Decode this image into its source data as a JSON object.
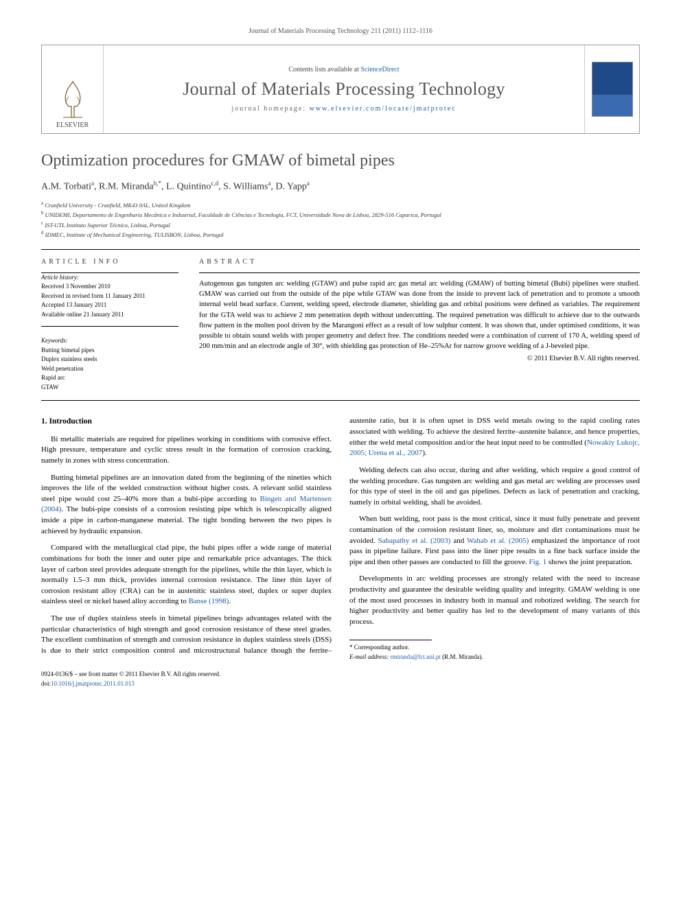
{
  "running_header": "Journal of Materials Processing Technology 211 (2011) 1112–1116",
  "banner": {
    "publisher_name": "ELSEVIER",
    "contents_prefix": "Contents lists available at ",
    "contents_link": "ScienceDirect",
    "journal_name": "Journal of Materials Processing Technology",
    "homepage_prefix": "journal homepage: ",
    "homepage_url": "www.elsevier.com/locate/jmatprotec"
  },
  "title": "Optimization procedures for GMAW of bimetal pipes",
  "authors_html": "A.M. Torbati<sup>a</sup>, R.M. Miranda<sup>b,*</sup>, L. Quintino<sup>c,d</sup>, S. Williams<sup>a</sup>, D. Yapp<sup>a</sup>",
  "affiliations": [
    "a Cranfield University - Cranfield, MK43 0AL, United Kingdom",
    "b UNIDEMI, Departamento de Engenharia Mecânica e Industrial, Faculdade de Ciências e Tecnologia, FCT, Universidade Nova de Lisboa, 2829-516 Caparica, Portugal",
    "c IST-UTL Instituto Superior Técnico, Lisboa, Portugal",
    "d IDMEC, Institute of Mechanical Engineering, TULISBON, Lisboa, Portugal"
  ],
  "article_info_heading": "ARTICLE INFO",
  "abstract_heading": "ABSTRACT",
  "history": {
    "head": "Article history:",
    "lines": [
      "Received 3 November 2010",
      "Received in revised form 11 January 2011",
      "Accepted 13 January 2011",
      "Available online 21 January 2011"
    ]
  },
  "keywords": {
    "head": "Keywords:",
    "items": [
      "Butting bimetal pipes",
      "Duplex stainless steels",
      "Weld penetration",
      "Rapid arc",
      "GTAW"
    ]
  },
  "abstract": "Autogenous gas tungsten arc welding (GTAW) and pulse rapid arc gas metal arc welding (GMAW) of butting bimetal (Bubi) pipelines were studied. GMAW was carried out from the outside of the pipe while GTAW was done from the inside to prevent lack of penetration and to promote a smooth internal weld bead surface. Current, welding speed, electrode diameter, shielding gas and orbital positions were defined as variables. The requirement for the GTA weld was to achieve 2 mm penetration depth without undercutting. The required penetration was difficult to achieve due to the outwards flow pattern in the molten pool driven by the Marangoni effect as a result of low sulphur content. It was shown that, under optimised conditions, it was possible to obtain sound welds with proper geometry and defect free. The conditions needed were a combination of current of 170 A, welding speed of 200 mm/min and an electrode angle of 30°, with shielding gas protection of He–25%Ar for narrow groove welding of a J-beveled pipe.",
  "copyright": "© 2011 Elsevier B.V. All rights reserved.",
  "intro_heading": "1. Introduction",
  "paragraphs": [
    "Bi metallic materials are required for pipelines working in conditions with corrosive effect. High pressure, temperature and cyclic stress result in the formation of corrosion cracking, namely in zones with stress concentration.",
    "Butting bimetal pipelines are an innovation dated from the beginning of the nineties which improves the life of the welded construction without higher costs. A relevant solid stainless steel pipe would cost 25–40% more than a bubi-pipe according to <a class=\"ref\" data-name=\"ref-link\" data-interactable=\"true\">Bingen and Martensen (2004)</a>. The bubi-pipe consists of a corrosion resisting pipe which is telescopically aligned inside a pipe in carbon-manganese material. The tight bonding between the two pipes is achieved by hydraulic expansion.",
    "Compared with the metallurgical clad pipe, the bubi pipes offer a wide range of material combinations for both the inner and outer pipe and remarkable price advantages. The thick layer of carbon steel provides adequate strength for the pipelines, while the thin layer, which is normally 1.5–3 mm thick, provides internal corrosion resistance. The liner thin layer of corrosion resistant alloy (CRA) can be in austenitic stainless steel, duplex or super duplex stainless steel or nickel based alloy according to <a class=\"ref\" data-name=\"ref-link\" data-interactable=\"true\">Banse (1998)</a>.",
    "The use of duplex stainless steels in bimetal pipelines brings advantages related with the particular characteristics of high strength and good corrosion resistance of these steel grades. The excellent combination of strength and corrosion resistance in duplex stainless steels (DSS) is due to their strict composition control and microstructural balance though the ferrite–austenite ratio, but it is often upset in DSS weld metals owing to the rapid cooling rates associated with welding. To achieve the desired ferrite–austenite balance, and hence properties, either the weld metal composition and/or the heat input need to be controlled (<a class=\"ref\" data-name=\"ref-link\" data-interactable=\"true\">Nowakiy Lukojc, 2005; Urena et al., 2007</a>).",
    "Welding defects can also occur, during and after welding, which require a good control of the welding procedure. Gas tungsten arc welding and gas metal arc welding are processes used for this type of steel in the oil and gas pipelines. Defects as lack of penetration and cracking, namely in orbital welding, shall be avoided.",
    "When butt welding, root pass is the most critical, since it must fully penetrate and prevent contamination of the corrosion resistant liner, so, moisture and dirt contaminations must be avoided. <a class=\"ref\" data-name=\"ref-link\" data-interactable=\"true\">Sabapathy et al. (2003)</a> and <a class=\"ref\" data-name=\"ref-link\" data-interactable=\"true\">Wahab et al. (2005)</a> emphasized the importance of root pass in pipeline failure. First pass into the liner pipe results in a fine back surface inside the pipe and then other passes are conducted to fill the groove. <a class=\"ref\" data-name=\"ref-link\" data-interactable=\"true\">Fig. 1</a> shows the joint preparation.",
    "Developments in arc welding processes are strongly related with the need to increase productivity and guarantee the desirable welding quality and integrity. GMAW welding is one of the most used processes in industry both in manual and robotized welding. The search for higher productivity and better quality has led to the development of many variants of this process."
  ],
  "corresponding": {
    "label": "* Corresponding author.",
    "email_label": "E-mail address:",
    "email": "rmiranda@fct.unl.pt",
    "email_suffix": "(R.M. Miranda)."
  },
  "front_matter": {
    "line1": "0924-0136/$ – see front matter © 2011 Elsevier B.V. All rights reserved.",
    "doi_prefix": "doi:",
    "doi": "10.1016/j.jmatprotec.2011.01.013"
  }
}
